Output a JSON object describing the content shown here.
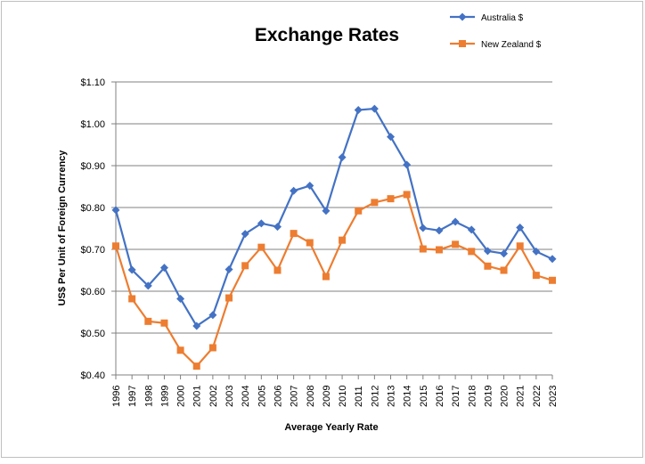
{
  "chart_data": {
    "type": "line",
    "title": "Exchange Rates",
    "xlabel": "Average Yearly Rate",
    "ylabel": "US$ Per Unit of Foreign Currency",
    "ylim": [
      0.4,
      1.1
    ],
    "yticks": [
      "$0.40",
      "$0.50",
      "$0.60",
      "$0.70",
      "$0.80",
      "$0.90",
      "$1.00",
      "$1.10"
    ],
    "grid": true,
    "legend_position": "top-right",
    "categories": [
      "1996",
      "1997",
      "1998",
      "1999",
      "2000",
      "2001",
      "2002",
      "2003",
      "2004",
      "2005",
      "2006",
      "2007",
      "2008",
      "2009",
      "2010",
      "2011",
      "2012",
      "2013",
      "2014",
      "2015",
      "2016",
      "2017",
      "2018",
      "2019",
      "2020",
      "2021",
      "2022",
      "2023"
    ],
    "series": [
      {
        "name": "Australia $",
        "color": "#4472C4",
        "marker": "diamond",
        "values": [
          0.794,
          0.651,
          0.613,
          0.656,
          0.582,
          0.517,
          0.543,
          0.652,
          0.737,
          0.762,
          0.754,
          0.84,
          0.852,
          0.792,
          0.92,
          1.033,
          1.036,
          0.969,
          0.902,
          0.751,
          0.745,
          0.766,
          0.747,
          0.696,
          0.69,
          0.752,
          0.695,
          0.677
        ]
      },
      {
        "name": "New Zealand $",
        "color": "#ED7D31",
        "marker": "square",
        "values": [
          0.708,
          0.582,
          0.528,
          0.524,
          0.459,
          0.421,
          0.465,
          0.584,
          0.661,
          0.705,
          0.65,
          0.738,
          0.716,
          0.635,
          0.722,
          0.792,
          0.812,
          0.821,
          0.831,
          0.701,
          0.699,
          0.712,
          0.695,
          0.66,
          0.65,
          0.708,
          0.638,
          0.626
        ]
      }
    ]
  }
}
